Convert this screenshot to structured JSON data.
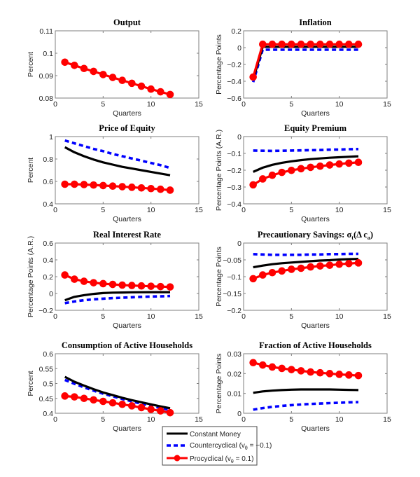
{
  "figure": {
    "legend": {
      "entries": [
        {
          "name": "Constant Money",
          "label": "Constant Money",
          "color": "#000000",
          "style": "solid"
        },
        {
          "name": "Countercyclical",
          "label_main": "Countercyclical (v",
          "label_sub": "θ",
          "label_tail": " = −0.1)",
          "color": "#0000ff",
          "style": "dashed"
        },
        {
          "name": "Procyclical",
          "label_main": "Procyclical (v",
          "label_sub": "θ",
          "label_tail": " = 0.1)",
          "color": "#ff0000",
          "style": "solid-circle"
        }
      ],
      "placement": "bottom-center"
    }
  },
  "chart_data": [
    {
      "type": "line",
      "title": "Output",
      "xlabel": "Quarters",
      "ylabel": "Percent",
      "xlim": [
        0,
        15
      ],
      "ylim": [
        0.08,
        0.11
      ],
      "xticks": [
        "0",
        "5",
        "10",
        "15"
      ],
      "yticks": [
        "0.08",
        "0.09",
        "0.1",
        "0.11"
      ],
      "ytick_values": [
        0.08,
        0.09,
        0.1,
        0.11
      ],
      "x": [
        1,
        2,
        3,
        4,
        5,
        6,
        7,
        8,
        9,
        10,
        11,
        12
      ],
      "series": [
        {
          "name": "Procyclical",
          "values": [
            0.096,
            0.0946,
            0.0932,
            0.0919,
            0.0905,
            0.0892,
            0.0879,
            0.0866,
            0.0853,
            0.084,
            0.0828,
            0.0816
          ]
        }
      ]
    },
    {
      "type": "line",
      "title": "Inflation",
      "xlabel": "Quarters",
      "ylabel": "Percentage Points",
      "xlim": [
        0,
        15
      ],
      "ylim": [
        -0.6,
        0.2
      ],
      "xticks": [
        "0",
        "5",
        "10",
        "15"
      ],
      "yticks": [
        "-0.6",
        "-0.4",
        "-0.2",
        "0",
        "0.2"
      ],
      "ytick_values": [
        -0.6,
        -0.4,
        -0.2,
        0,
        0.2
      ],
      "x": [
        1,
        2,
        3,
        4,
        5,
        6,
        7,
        8,
        9,
        10,
        11,
        12
      ],
      "series": [
        {
          "name": "Constant Money",
          "values": [
            -0.38,
            0.01,
            0.01,
            0.01,
            0.01,
            0.01,
            0.01,
            0.01,
            0.01,
            0.01,
            0.01,
            0.01
          ]
        },
        {
          "name": "Countercyclical",
          "values": [
            -0.41,
            -0.025,
            -0.025,
            -0.025,
            -0.025,
            -0.025,
            -0.025,
            -0.025,
            -0.025,
            -0.025,
            -0.025,
            -0.025
          ]
        },
        {
          "name": "Procyclical",
          "values": [
            -0.35,
            0.04,
            0.04,
            0.04,
            0.04,
            0.04,
            0.04,
            0.04,
            0.04,
            0.04,
            0.04,
            0.04
          ]
        }
      ]
    },
    {
      "type": "line",
      "title": "Price of Equity",
      "xlabel": "Quarters",
      "ylabel": "Percent",
      "xlim": [
        0,
        15
      ],
      "ylim": [
        0.4,
        1.0
      ],
      "xticks": [
        "0",
        "5",
        "10",
        "15"
      ],
      "yticks": [
        "0.4",
        "0.6",
        "0.8",
        "1"
      ],
      "ytick_values": [
        0.4,
        0.6,
        0.8,
        1.0
      ],
      "x": [
        1,
        2,
        3,
        4,
        5,
        6,
        7,
        8,
        9,
        10,
        11,
        12
      ],
      "series": [
        {
          "name": "Constant Money",
          "values": [
            0.905,
            0.86,
            0.825,
            0.795,
            0.77,
            0.75,
            0.73,
            0.715,
            0.7,
            0.685,
            0.67,
            0.655
          ]
        },
        {
          "name": "Countercyclical",
          "values": [
            0.965,
            0.94,
            0.915,
            0.89,
            0.87,
            0.845,
            0.825,
            0.805,
            0.785,
            0.765,
            0.745,
            0.72
          ]
        },
        {
          "name": "Procyclical",
          "values": [
            0.575,
            0.575,
            0.572,
            0.568,
            0.563,
            0.558,
            0.553,
            0.548,
            0.542,
            0.536,
            0.53,
            0.522
          ]
        }
      ]
    },
    {
      "type": "line",
      "title": "Equity Premium",
      "xlabel": "Quarters",
      "ylabel": "Percentage Points (A.R.)",
      "xlim": [
        0,
        15
      ],
      "ylim": [
        -0.4,
        0
      ],
      "xticks": [
        "0",
        "5",
        "10",
        "15"
      ],
      "yticks": [
        "-0.4",
        "-0.3",
        "-0.2",
        "-0.1",
        "0"
      ],
      "ytick_values": [
        -0.4,
        -0.3,
        -0.2,
        -0.1,
        0
      ],
      "x": [
        1,
        2,
        3,
        4,
        5,
        6,
        7,
        8,
        9,
        10,
        11,
        12
      ],
      "series": [
        {
          "name": "Constant Money",
          "values": [
            -0.21,
            -0.185,
            -0.168,
            -0.156,
            -0.147,
            -0.14,
            -0.134,
            -0.13,
            -0.126,
            -0.123,
            -0.12,
            -0.117
          ]
        },
        {
          "name": "Countercyclical",
          "values": [
            -0.083,
            -0.084,
            -0.085,
            -0.084,
            -0.083,
            -0.082,
            -0.081,
            -0.08,
            -0.078,
            -0.077,
            -0.075,
            -0.074
          ]
        },
        {
          "name": "Procyclical",
          "values": [
            -0.287,
            -0.252,
            -0.23,
            -0.213,
            -0.201,
            -0.191,
            -0.183,
            -0.176,
            -0.169,
            -0.163,
            -0.158,
            -0.153
          ]
        }
      ]
    },
    {
      "type": "line",
      "title": "Real Interest Rate",
      "xlabel": "Quarters",
      "ylabel": "Percentage Points (A.R.)",
      "xlim": [
        0,
        15
      ],
      "ylim": [
        -0.2,
        0.6
      ],
      "xticks": [
        "0",
        "5",
        "10",
        "15"
      ],
      "yticks": [
        "-0.2",
        "0",
        "0.2",
        "0.4",
        "0.6"
      ],
      "ytick_values": [
        -0.2,
        0,
        0.2,
        0.4,
        0.6
      ],
      "x": [
        1,
        2,
        3,
        4,
        5,
        6,
        7,
        8,
        9,
        10,
        11,
        12
      ],
      "series": [
        {
          "name": "Constant Money",
          "values": [
            -0.08,
            -0.04,
            -0.02,
            -0.005,
            0.005,
            0.01,
            0.012,
            0.014,
            0.015,
            0.016,
            0.016,
            0.016
          ]
        },
        {
          "name": "Countercyclical",
          "values": [
            -0.115,
            -0.095,
            -0.08,
            -0.07,
            -0.062,
            -0.055,
            -0.05,
            -0.045,
            -0.04,
            -0.037,
            -0.034,
            -0.03
          ]
        },
        {
          "name": "Procyclical",
          "values": [
            0.22,
            0.17,
            0.145,
            0.128,
            0.117,
            0.108,
            0.1,
            0.095,
            0.09,
            0.086,
            0.082,
            0.078
          ]
        }
      ]
    },
    {
      "type": "line",
      "title_main": "Precautionary Savings:  σ",
      "title_sub": "t",
      "title_tail": "(Δ c",
      "title_sub2": "a",
      "title_end": ")",
      "xlabel": "Quarters",
      "ylabel": "Percentage Points",
      "xlim": [
        0,
        15
      ],
      "ylim": [
        -0.2,
        0
      ],
      "xticks": [
        "0",
        "5",
        "10",
        "15"
      ],
      "yticks": [
        "-0.2",
        "-0.15",
        "-0.1",
        "-0.05",
        "0"
      ],
      "ytick_values": [
        -0.2,
        -0.15,
        -0.1,
        -0.05,
        0
      ],
      "x": [
        1,
        2,
        3,
        4,
        5,
        6,
        7,
        8,
        9,
        10,
        11,
        12
      ],
      "series": [
        {
          "name": "Constant Money",
          "values": [
            -0.072,
            -0.067,
            -0.063,
            -0.06,
            -0.058,
            -0.056,
            -0.054,
            -0.052,
            -0.051,
            -0.049,
            -0.048,
            -0.047
          ]
        },
        {
          "name": "Countercyclical",
          "values": [
            -0.033,
            -0.034,
            -0.035,
            -0.035,
            -0.035,
            -0.035,
            -0.034,
            -0.034,
            -0.033,
            -0.033,
            -0.032,
            -0.032
          ]
        },
        {
          "name": "Procyclical",
          "values": [
            -0.106,
            -0.095,
            -0.088,
            -0.083,
            -0.078,
            -0.075,
            -0.071,
            -0.068,
            -0.066,
            -0.063,
            -0.061,
            -0.059
          ]
        }
      ]
    },
    {
      "type": "line",
      "title": "Consumption of Active Households",
      "xlabel": "Quarters",
      "ylabel": "Percent",
      "xlim": [
        0,
        15
      ],
      "ylim": [
        0.4,
        0.6
      ],
      "xticks": [
        "0",
        "5",
        "10",
        "15"
      ],
      "yticks": [
        "0.4",
        "0.45",
        "0.5",
        "0.55",
        "0.6"
      ],
      "ytick_values": [
        0.4,
        0.45,
        0.5,
        0.55,
        0.6
      ],
      "x": [
        1,
        2,
        3,
        4,
        5,
        6,
        7,
        8,
        9,
        10,
        11,
        12
      ],
      "series": [
        {
          "name": "Constant Money",
          "values": [
            0.522,
            0.506,
            0.493,
            0.481,
            0.47,
            0.461,
            0.452,
            0.444,
            0.437,
            0.43,
            0.423,
            0.417
          ]
        },
        {
          "name": "Countercyclical",
          "values": [
            0.512,
            0.499,
            0.487,
            0.476,
            0.466,
            0.457,
            0.448,
            0.44,
            0.432,
            0.425,
            0.418,
            0.411
          ]
        },
        {
          "name": "Procyclical",
          "values": [
            0.458,
            0.455,
            0.45,
            0.445,
            0.44,
            0.435,
            0.43,
            0.425,
            0.419,
            0.413,
            0.408,
            0.402
          ]
        }
      ]
    },
    {
      "type": "line",
      "title": "Fraction of Active Households",
      "xlabel": "Quarters",
      "ylabel": "Percentage Points",
      "xlim": [
        0,
        15
      ],
      "ylim": [
        0,
        0.03
      ],
      "xticks": [
        "0",
        "5",
        "10",
        "15"
      ],
      "yticks": [
        "0",
        "0.01",
        "0.02",
        "0.03"
      ],
      "ytick_values": [
        0,
        0.01,
        0.02,
        0.03
      ],
      "x": [
        1,
        2,
        3,
        4,
        5,
        6,
        7,
        8,
        9,
        10,
        11,
        12
      ],
      "series": [
        {
          "name": "Constant Money",
          "values": [
            0.0103,
            0.011,
            0.0114,
            0.0117,
            0.0119,
            0.012,
            0.012,
            0.012,
            0.012,
            0.0119,
            0.0118,
            0.0117
          ]
        },
        {
          "name": "Countercyclical",
          "values": [
            0.0018,
            0.0026,
            0.0032,
            0.0037,
            0.0041,
            0.0044,
            0.0047,
            0.0049,
            0.0051,
            0.0053,
            0.0055,
            0.0056
          ]
        },
        {
          "name": "Procyclical",
          "values": [
            0.0255,
            0.0243,
            0.0233,
            0.0226,
            0.022,
            0.0214,
            0.0208,
            0.0204,
            0.02,
            0.0196,
            0.0193,
            0.019
          ]
        }
      ]
    }
  ]
}
